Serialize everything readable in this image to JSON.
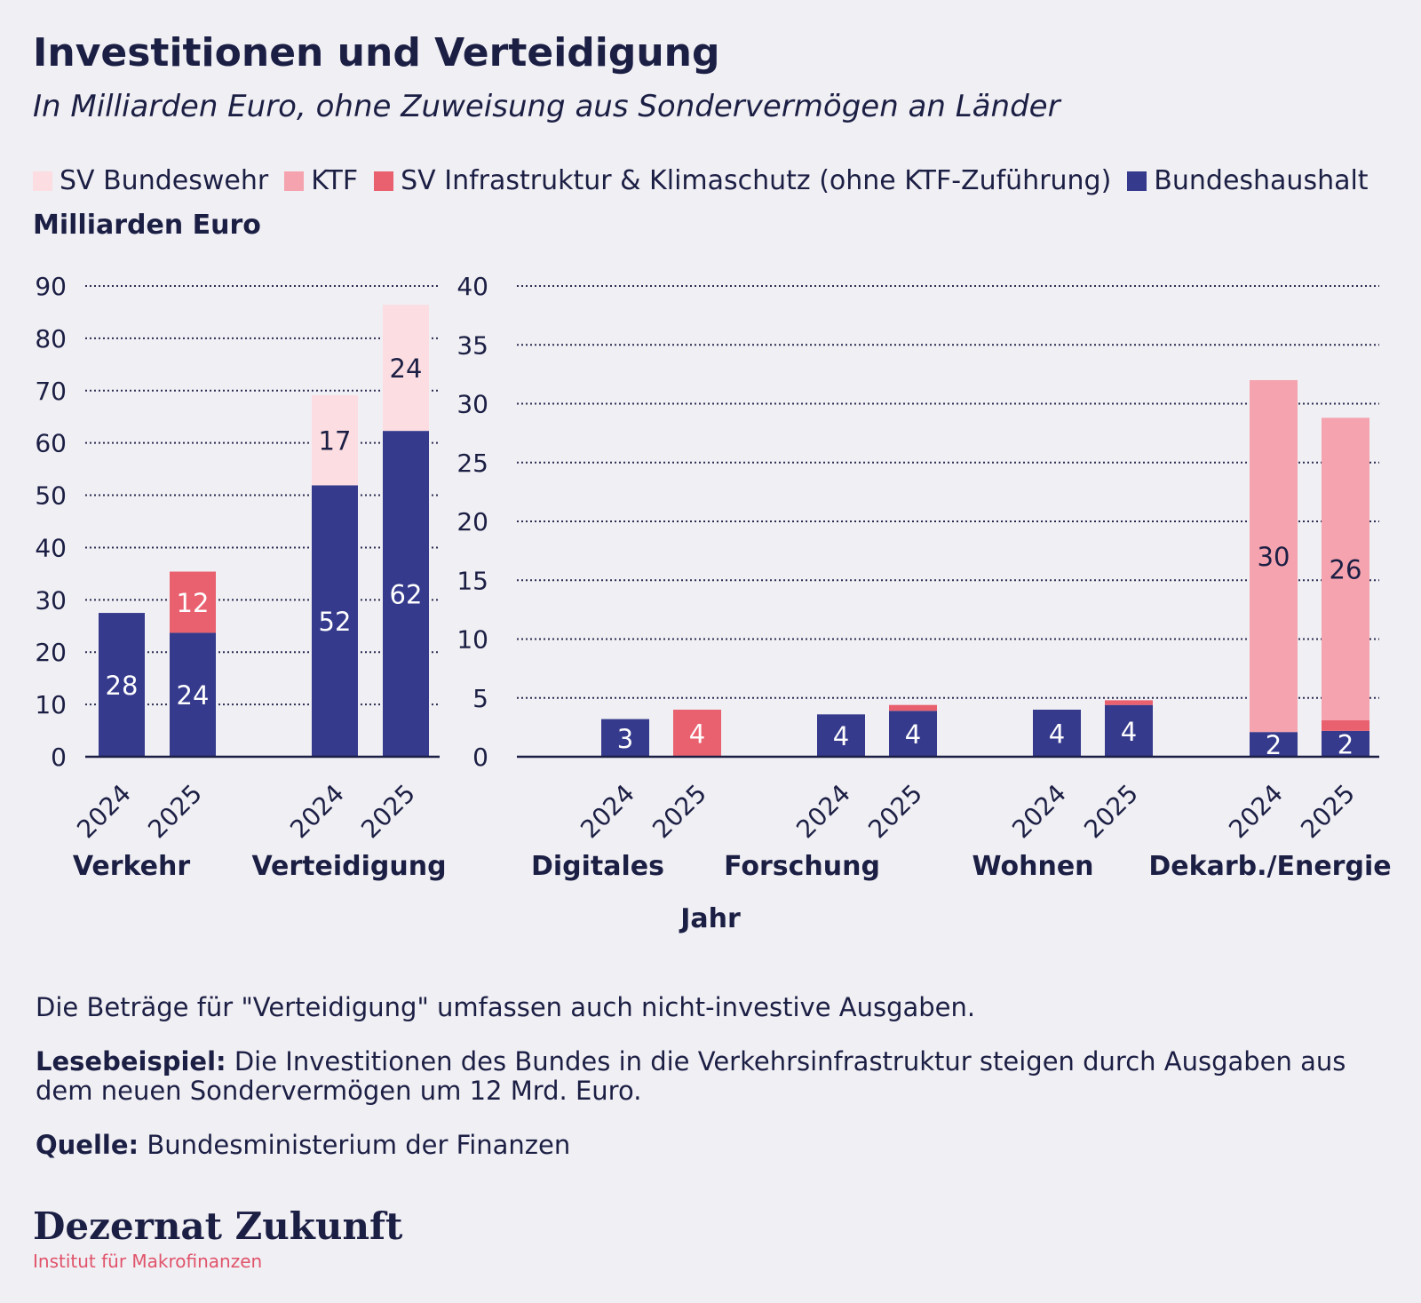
{
  "title": "Investitionen und Verteidigung",
  "subtitle": "In Milliarden Euro, ohne Zuweisung aus Sondervermögen an Länder",
  "legend": [
    {
      "label": "SV Bundeswehr",
      "color": "#fbdde2"
    },
    {
      "label": "KTF",
      "color": "#f5a3ae"
    },
    {
      "label": "SV Infrastruktur & Klimaschutz (ohne KTF-Zuführung)",
      "color": "#e9606f"
    },
    {
      "label": "Bundeshaushalt",
      "color": "#353a8c"
    }
  ],
  "notes": {
    "note1": "Die Beträge für \"Verteidigung\" umfassen auch nicht-investive Ausgaben.",
    "reading_label": "Lesebeispiel:",
    "reading_text": " Die Investitionen des Bundes in die Verkehrsinfrastruktur steigen durch Ausgaben aus dem neuen Sondervermögen um 12 Mrd. Euro.",
    "source_label": "Quelle:",
    "source_text": " Bundesministerium der Finanzen"
  },
  "logo": {
    "main": "Dezernat Zukunft",
    "sub": "Institut für Makrofinanzen"
  },
  "chart_data": [
    {
      "type": "bar",
      "stacked": true,
      "ylabel": "Milliarden Euro",
      "xlabel": "",
      "ylim": [
        0,
        90
      ],
      "yticks": [
        0,
        10,
        20,
        30,
        40,
        50,
        60,
        70,
        80,
        90
      ],
      "grid": true,
      "groups": [
        {
          "name": "Verkehr",
          "bars": [
            {
              "year": "2024",
              "segments": [
                {
                  "series": "Bundeshaushalt",
                  "value": 27.5,
                  "label": "28"
                }
              ]
            },
            {
              "year": "2025",
              "segments": [
                {
                  "series": "Bundeshaushalt",
                  "value": 23.7,
                  "label": "24"
                },
                {
                  "series": "SV Infrastruktur & Klimaschutz (ohne KTF-Zuführung)",
                  "value": 11.7,
                  "label": "12"
                }
              ]
            }
          ]
        },
        {
          "name": "Verteidigung",
          "bars": [
            {
              "year": "2024",
              "segments": [
                {
                  "series": "Bundeshaushalt",
                  "value": 51.9,
                  "label": "52"
                },
                {
                  "series": "SV Bundeswehr",
                  "value": 17.2,
                  "label": "17"
                }
              ]
            },
            {
              "year": "2025",
              "segments": [
                {
                  "series": "Bundeshaushalt",
                  "value": 62.3,
                  "label": "62"
                },
                {
                  "series": "SV Bundeswehr",
                  "value": 24.1,
                  "label": "24"
                }
              ]
            }
          ]
        }
      ]
    },
    {
      "type": "bar",
      "stacked": true,
      "ylabel": "",
      "xlabel": "Jahr",
      "ylim": [
        0,
        40
      ],
      "yticks": [
        0,
        5,
        10,
        15,
        20,
        25,
        30,
        35,
        40
      ],
      "grid": true,
      "groups": [
        {
          "name": "Digitales",
          "bars": [
            {
              "year": "2024",
              "segments": [
                {
                  "series": "Bundeshaushalt",
                  "value": 3.2,
                  "label": "3"
                }
              ]
            },
            {
              "year": "2025",
              "segments": [
                {
                  "series": "SV Infrastruktur & Klimaschutz (ohne KTF-Zuführung)",
                  "value": 4.0,
                  "label": "4"
                }
              ]
            }
          ]
        },
        {
          "name": "Forschung",
          "bars": [
            {
              "year": "2024",
              "segments": [
                {
                  "series": "Bundeshaushalt",
                  "value": 3.6,
                  "label": "4"
                }
              ]
            },
            {
              "year": "2025",
              "segments": [
                {
                  "series": "Bundeshaushalt",
                  "value": 3.9,
                  "label": "4"
                },
                {
                  "series": "SV Infrastruktur & Klimaschutz (ohne KTF-Zuführung)",
                  "value": 0.5,
                  "label": ""
                }
              ]
            }
          ]
        },
        {
          "name": "Wohnen",
          "bars": [
            {
              "year": "2024",
              "segments": [
                {
                  "series": "Bundeshaushalt",
                  "value": 4.0,
                  "label": "4"
                }
              ]
            },
            {
              "year": "2025",
              "segments": [
                {
                  "series": "Bundeshaushalt",
                  "value": 4.4,
                  "label": "4"
                },
                {
                  "series": "SV Infrastruktur & Klimaschutz (ohne KTF-Zuführung)",
                  "value": 0.4,
                  "label": ""
                }
              ]
            }
          ]
        },
        {
          "name": "Dekarb./Energie",
          "bars": [
            {
              "year": "2024",
              "segments": [
                {
                  "series": "Bundeshaushalt",
                  "value": 2.1,
                  "label": "2"
                },
                {
                  "series": "KTF",
                  "value": 29.9,
                  "label": "30"
                }
              ]
            },
            {
              "year": "2025",
              "segments": [
                {
                  "series": "Bundeshaushalt",
                  "value": 2.2,
                  "label": "2"
                },
                {
                  "series": "SV Infrastruktur & Klimaschutz (ohne KTF-Zuführung)",
                  "value": 0.9,
                  "label": ""
                },
                {
                  "series": "KTF",
                  "value": 25.7,
                  "label": "26"
                }
              ]
            }
          ]
        }
      ]
    }
  ]
}
